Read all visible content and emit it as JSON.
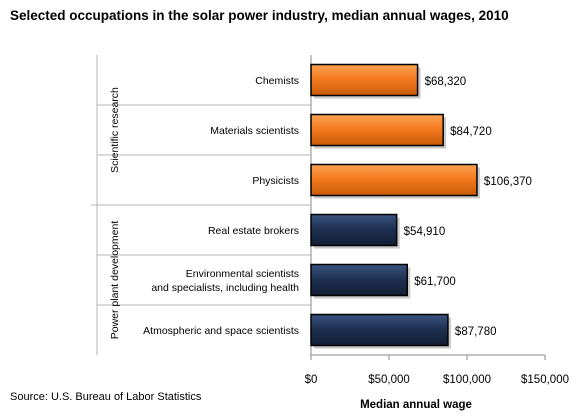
{
  "chart_data": {
    "type": "bar",
    "orientation": "horizontal",
    "title": "Selected occupations in the solar power industry, median annual wages, 2010",
    "xlabel": "Median annual wage",
    "xlim": [
      0,
      150000
    ],
    "xticks": [
      "$0",
      "$50,000",
      "$100,000",
      "$150,000"
    ],
    "xtick_values": [
      0,
      50000,
      100000,
      150000
    ],
    "grid": false,
    "source": "Source: U.S. Bureau of Labor Statistics",
    "groups": [
      {
        "name": "Scientific research",
        "color": "#F47B20",
        "items": [
          {
            "category": "Chemists",
            "value": 68320,
            "label": "$68,320"
          },
          {
            "category": "Materials scientists",
            "value": 84720,
            "label": "$84,720"
          },
          {
            "category": "Physicists",
            "value": 106370,
            "label": "$106,370"
          }
        ]
      },
      {
        "name": "Power plant development",
        "color": "#1F3152",
        "items": [
          {
            "category": "Real estate brokers",
            "value": 54910,
            "label": "$54,910"
          },
          {
            "category": [
              "Environmental  scientists",
              "and specialists, including health"
            ],
            "value": 61700,
            "label": "$61,700"
          },
          {
            "category": "Atmospheric and space scientists",
            "value": 87780,
            "label": "$87,780"
          }
        ]
      }
    ]
  }
}
